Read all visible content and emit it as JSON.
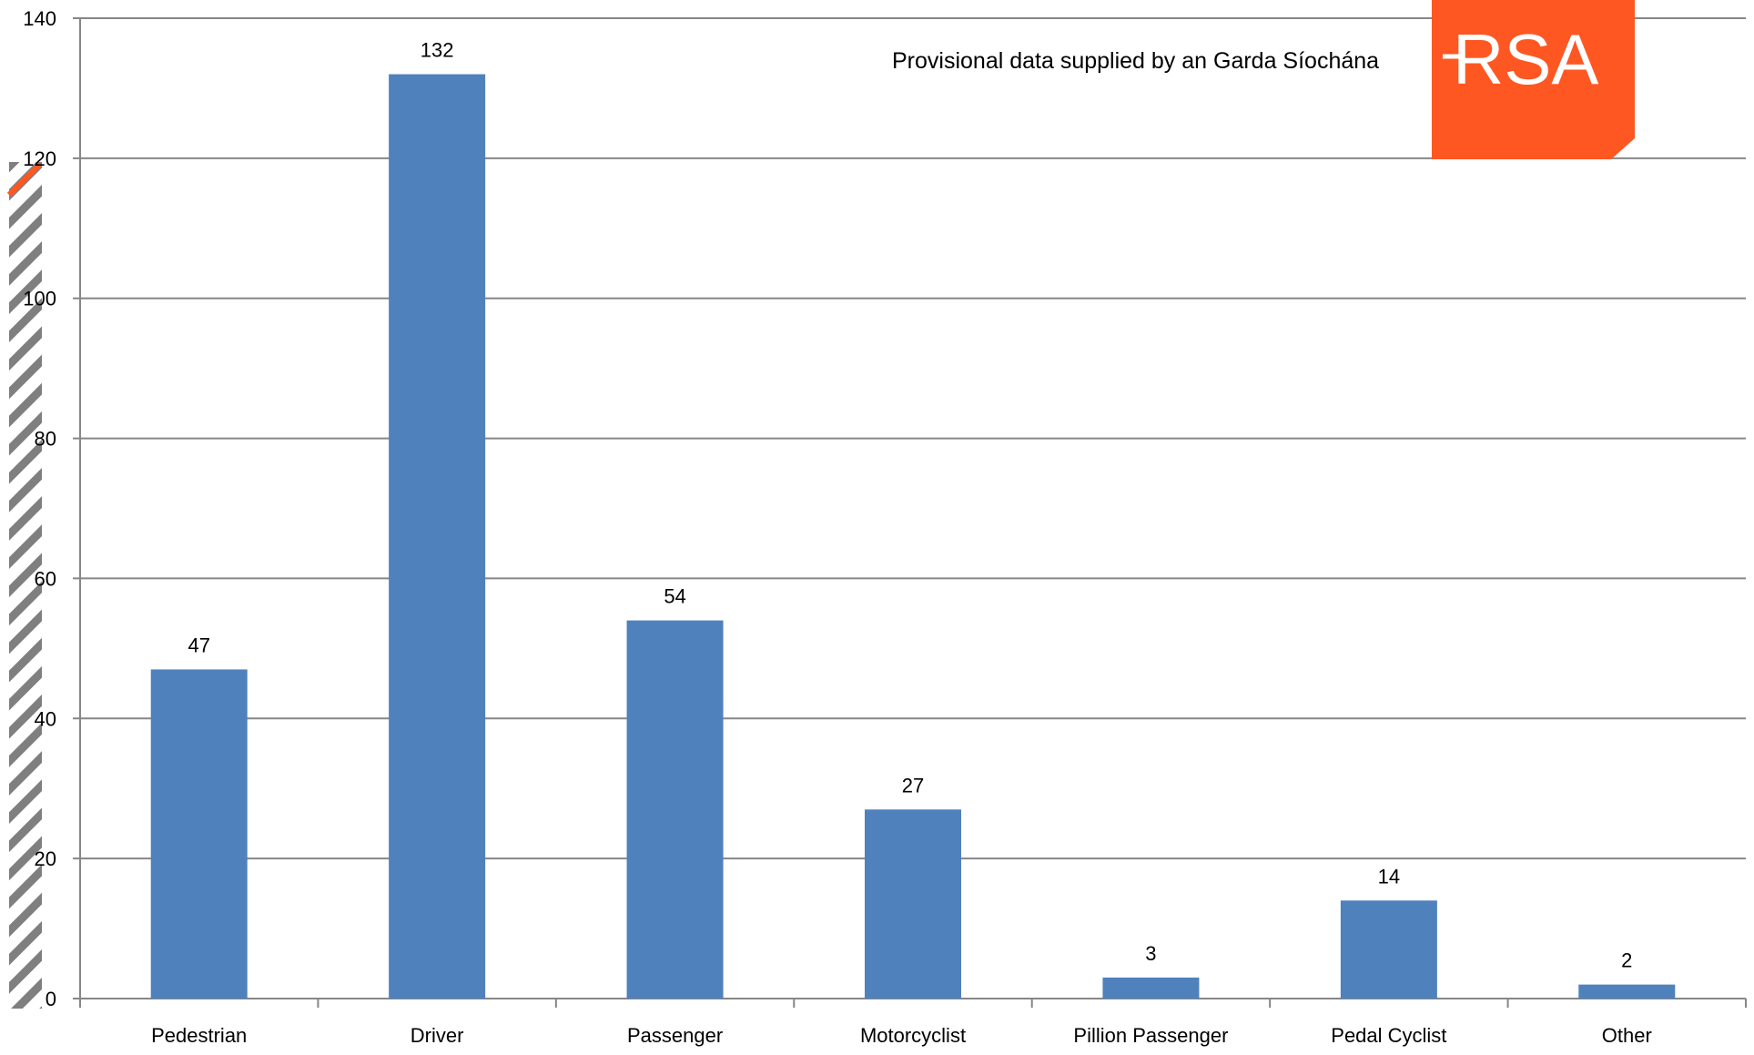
{
  "chart_data": {
    "type": "bar",
    "categories": [
      "Pedestrian",
      "Driver",
      "Passenger",
      "Motorcyclist",
      "Pillion Passenger",
      "Pedal Cyclist",
      "Other"
    ],
    "values": [
      47,
      132,
      54,
      27,
      3,
      14,
      2
    ],
    "data_labels": [
      "47",
      "132",
      "54",
      "27",
      "3",
      "14",
      "2"
    ],
    "ylim": [
      0,
      140
    ],
    "yticks": [
      0,
      20,
      40,
      60,
      80,
      100,
      120,
      140
    ],
    "ytick_labels": [
      "0",
      "20",
      "40",
      "60",
      "80",
      "100",
      "120",
      "140"
    ],
    "title": "",
    "xlabel": "",
    "ylabel": "",
    "grid": true,
    "legend": "none",
    "bar_color": "#4f81bd",
    "gridline_color": "#868686"
  },
  "annotation": {
    "source_note": "Provisional data supplied by an  Garda Síochána"
  },
  "logo": {
    "text": "RSA",
    "background": "#ff5722",
    "text_color": "#ffffff"
  },
  "side_stripe": {
    "color": "#7f7f7f",
    "accent": "#ff5722"
  }
}
